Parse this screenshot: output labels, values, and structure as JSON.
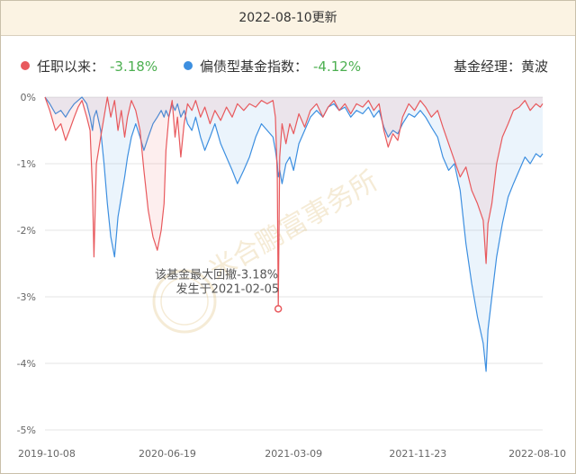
{
  "header": {
    "title": "2022-08-10更新"
  },
  "legend": {
    "items": [
      {
        "label": "任职以来：",
        "value": "-3.18%",
        "color": "#e8595d"
      },
      {
        "label": "偏债型基金指数：",
        "value": "-4.12%",
        "color": "#3d8fe0"
      }
    ],
    "manager": "基金经理：黄波"
  },
  "annotation": {
    "line1": "该基金最大回撤-3.18%",
    "line2": "发生于2021-02-05"
  },
  "watermark": "米合鹏富事务所",
  "chart_data": {
    "type": "area",
    "xlabel": "",
    "ylabel": "",
    "x_ticks": [
      "2019-10-08",
      "2020-06-19",
      "2021-03-09",
      "2021-11-23",
      "2022-08-10"
    ],
    "y_ticks": [
      "0%",
      "-1%",
      "-2%",
      "-3%",
      "-4%",
      "-5%"
    ],
    "ylim": [
      -5,
      0
    ],
    "x_range": [
      "2019-10-08",
      "2022-08-10"
    ],
    "grid": true,
    "max_drawdown_marker": {
      "date": "2021-02-05",
      "value": -3.18
    },
    "series": [
      {
        "name": "任职以来",
        "color": "#e8595d",
        "points": [
          [
            "2019-10-08",
            0
          ],
          [
            "2019-10-18",
            -0.2
          ],
          [
            "2019-10-30",
            -0.5
          ],
          [
            "2019-11-10",
            -0.4
          ],
          [
            "2019-11-20",
            -0.65
          ],
          [
            "2019-11-28",
            -0.5
          ],
          [
            "2019-12-08",
            -0.3
          ],
          [
            "2019-12-16",
            -0.15
          ],
          [
            "2019-12-24",
            -0.05
          ],
          [
            "2020-01-03",
            -0.3
          ],
          [
            "2020-01-10",
            -0.5
          ],
          [
            "2020-01-15",
            -1.4
          ],
          [
            "2020-01-18",
            -2.4
          ],
          [
            "2020-01-23",
            -1.0
          ],
          [
            "2020-02-01",
            -0.6
          ],
          [
            "2020-02-08",
            -0.3
          ],
          [
            "2020-02-15",
            0
          ],
          [
            "2020-02-22",
            -0.3
          ],
          [
            "2020-03-01",
            -0.05
          ],
          [
            "2020-03-08",
            -0.5
          ],
          [
            "2020-03-15",
            -0.2
          ],
          [
            "2020-03-22",
            -0.6
          ],
          [
            "2020-03-28",
            -0.3
          ],
          [
            "2020-04-05",
            -0.05
          ],
          [
            "2020-04-14",
            -0.2
          ],
          [
            "2020-04-23",
            -0.5
          ],
          [
            "2020-05-01",
            -1.1
          ],
          [
            "2020-05-10",
            -1.7
          ],
          [
            "2020-05-20",
            -2.1
          ],
          [
            "2020-05-29",
            -2.3
          ],
          [
            "2020-06-06",
            -2.0
          ],
          [
            "2020-06-12",
            -1.6
          ],
          [
            "2020-06-16",
            -0.8
          ],
          [
            "2020-06-22",
            -0.3
          ],
          [
            "2020-06-29",
            -0.05
          ],
          [
            "2020-07-05",
            -0.6
          ],
          [
            "2020-07-10",
            -0.3
          ],
          [
            "2020-07-17",
            -0.9
          ],
          [
            "2020-07-24",
            -0.4
          ],
          [
            "2020-07-31",
            -0.1
          ],
          [
            "2020-08-09",
            -0.2
          ],
          [
            "2020-08-17",
            -0.05
          ],
          [
            "2020-08-27",
            -0.3
          ],
          [
            "2020-09-05",
            -0.15
          ],
          [
            "2020-09-16",
            -0.4
          ],
          [
            "2020-09-26",
            -0.2
          ],
          [
            "2020-10-08",
            -0.35
          ],
          [
            "2020-10-20",
            -0.15
          ],
          [
            "2020-11-01",
            -0.3
          ],
          [
            "2020-11-12",
            -0.1
          ],
          [
            "2020-11-25",
            -0.2
          ],
          [
            "2020-12-07",
            -0.1
          ],
          [
            "2020-12-20",
            -0.15
          ],
          [
            "2021-01-01",
            -0.05
          ],
          [
            "2021-01-13",
            -0.1
          ],
          [
            "2021-01-25",
            -0.05
          ],
          [
            "2021-01-30",
            -0.3
          ],
          [
            "2021-02-03",
            -1.2
          ],
          [
            "2021-02-05",
            -3.18
          ],
          [
            "2021-02-08",
            -0.9
          ],
          [
            "2021-02-13",
            -0.4
          ],
          [
            "2021-02-21",
            -0.7
          ],
          [
            "2021-03-01",
            -0.4
          ],
          [
            "2021-03-09",
            -0.55
          ],
          [
            "2021-03-20",
            -0.25
          ],
          [
            "2021-04-01",
            -0.45
          ],
          [
            "2021-04-13",
            -0.2
          ],
          [
            "2021-04-26",
            -0.1
          ],
          [
            "2021-05-09",
            -0.3
          ],
          [
            "2021-05-20",
            -0.15
          ],
          [
            "2021-06-01",
            -0.05
          ],
          [
            "2021-06-12",
            -0.2
          ],
          [
            "2021-06-24",
            -0.1
          ],
          [
            "2021-07-06",
            -0.25
          ],
          [
            "2021-07-18",
            -0.1
          ],
          [
            "2021-07-31",
            -0.15
          ],
          [
            "2021-08-12",
            -0.05
          ],
          [
            "2021-08-23",
            -0.2
          ],
          [
            "2021-09-03",
            -0.1
          ],
          [
            "2021-09-13",
            -0.5
          ],
          [
            "2021-09-22",
            -0.75
          ],
          [
            "2021-10-02",
            -0.55
          ],
          [
            "2021-10-12",
            -0.65
          ],
          [
            "2021-10-22",
            -0.3
          ],
          [
            "2021-11-04",
            -0.1
          ],
          [
            "2021-11-16",
            -0.2
          ],
          [
            "2021-11-28",
            -0.05
          ],
          [
            "2021-12-09",
            -0.15
          ],
          [
            "2021-12-21",
            -0.3
          ],
          [
            "2022-01-03",
            -0.2
          ],
          [
            "2022-01-14",
            -0.45
          ],
          [
            "2022-01-26",
            -0.7
          ],
          [
            "2022-02-07",
            -0.95
          ],
          [
            "2022-02-19",
            -1.2
          ],
          [
            "2022-03-03",
            -1.05
          ],
          [
            "2022-03-15",
            -1.4
          ],
          [
            "2022-03-27",
            -1.6
          ],
          [
            "2022-04-08",
            -1.85
          ],
          [
            "2022-04-14",
            -2.5
          ],
          [
            "2022-04-18",
            -1.9
          ],
          [
            "2022-04-26",
            -1.6
          ],
          [
            "2022-05-06",
            -1.0
          ],
          [
            "2022-05-18",
            -0.6
          ],
          [
            "2022-05-30",
            -0.4
          ],
          [
            "2022-06-10",
            -0.2
          ],
          [
            "2022-06-22",
            -0.15
          ],
          [
            "2022-07-04",
            -0.05
          ],
          [
            "2022-07-15",
            -0.2
          ],
          [
            "2022-07-27",
            -0.1
          ],
          [
            "2022-08-05",
            -0.15
          ],
          [
            "2022-08-10",
            -0.1
          ]
        ]
      },
      {
        "name": "偏债型基金指数",
        "color": "#3d8fe0",
        "points": [
          [
            "2019-10-08",
            0
          ],
          [
            "2019-10-18",
            -0.1
          ],
          [
            "2019-10-30",
            -0.25
          ],
          [
            "2019-11-10",
            -0.2
          ],
          [
            "2019-11-20",
            -0.3
          ],
          [
            "2019-11-28",
            -0.2
          ],
          [
            "2019-12-08",
            -0.1
          ],
          [
            "2019-12-16",
            -0.05
          ],
          [
            "2019-12-24",
            0
          ],
          [
            "2020-01-03",
            -0.1
          ],
          [
            "2020-01-10",
            -0.3
          ],
          [
            "2020-01-15",
            -0.5
          ],
          [
            "2020-01-18",
            -0.3
          ],
          [
            "2020-01-23",
            -0.2
          ],
          [
            "2020-02-01",
            -0.5
          ],
          [
            "2020-02-08",
            -1.0
          ],
          [
            "2020-02-15",
            -1.6
          ],
          [
            "2020-02-22",
            -2.1
          ],
          [
            "2020-03-01",
            -2.4
          ],
          [
            "2020-03-08",
            -1.8
          ],
          [
            "2020-03-15",
            -1.5
          ],
          [
            "2020-03-22",
            -1.2
          ],
          [
            "2020-03-28",
            -0.9
          ],
          [
            "2020-04-05",
            -0.6
          ],
          [
            "2020-04-14",
            -0.4
          ],
          [
            "2020-04-23",
            -0.6
          ],
          [
            "2020-05-01",
            -0.8
          ],
          [
            "2020-05-10",
            -0.6
          ],
          [
            "2020-05-20",
            -0.4
          ],
          [
            "2020-05-29",
            -0.3
          ],
          [
            "2020-06-06",
            -0.2
          ],
          [
            "2020-06-12",
            -0.3
          ],
          [
            "2020-06-16",
            -0.2
          ],
          [
            "2020-06-22",
            -0.3
          ],
          [
            "2020-06-29",
            -0.1
          ],
          [
            "2020-07-05",
            -0.2
          ],
          [
            "2020-07-10",
            -0.1
          ],
          [
            "2020-07-17",
            -0.3
          ],
          [
            "2020-07-24",
            -0.2
          ],
          [
            "2020-07-31",
            -0.4
          ],
          [
            "2020-08-09",
            -0.5
          ],
          [
            "2020-08-17",
            -0.3
          ],
          [
            "2020-08-27",
            -0.6
          ],
          [
            "2020-09-05",
            -0.8
          ],
          [
            "2020-09-16",
            -0.6
          ],
          [
            "2020-09-26",
            -0.4
          ],
          [
            "2020-10-08",
            -0.7
          ],
          [
            "2020-10-20",
            -0.9
          ],
          [
            "2020-11-01",
            -1.1
          ],
          [
            "2020-11-12",
            -1.3
          ],
          [
            "2020-11-25",
            -1.1
          ],
          [
            "2020-12-07",
            -0.9
          ],
          [
            "2020-12-20",
            -0.6
          ],
          [
            "2021-01-01",
            -0.4
          ],
          [
            "2021-01-13",
            -0.5
          ],
          [
            "2021-01-25",
            -0.6
          ],
          [
            "2021-01-30",
            -0.8
          ],
          [
            "2021-02-03",
            -1.0
          ],
          [
            "2021-02-05",
            -1.2
          ],
          [
            "2021-02-08",
            -1.1
          ],
          [
            "2021-02-13",
            -1.3
          ],
          [
            "2021-02-21",
            -1.0
          ],
          [
            "2021-03-01",
            -0.9
          ],
          [
            "2021-03-09",
            -1.1
          ],
          [
            "2021-03-20",
            -0.7
          ],
          [
            "2021-04-01",
            -0.5
          ],
          [
            "2021-04-13",
            -0.3
          ],
          [
            "2021-04-26",
            -0.2
          ],
          [
            "2021-05-09",
            -0.3
          ],
          [
            "2021-05-20",
            -0.15
          ],
          [
            "2021-06-01",
            -0.1
          ],
          [
            "2021-06-12",
            -0.2
          ],
          [
            "2021-06-24",
            -0.15
          ],
          [
            "2021-07-06",
            -0.3
          ],
          [
            "2021-07-18",
            -0.2
          ],
          [
            "2021-07-31",
            -0.25
          ],
          [
            "2021-08-12",
            -0.15
          ],
          [
            "2021-08-23",
            -0.3
          ],
          [
            "2021-09-03",
            -0.2
          ],
          [
            "2021-09-13",
            -0.45
          ],
          [
            "2021-09-22",
            -0.6
          ],
          [
            "2021-10-02",
            -0.5
          ],
          [
            "2021-10-12",
            -0.55
          ],
          [
            "2021-10-22",
            -0.4
          ],
          [
            "2021-11-04",
            -0.25
          ],
          [
            "2021-11-16",
            -0.3
          ],
          [
            "2021-11-28",
            -0.2
          ],
          [
            "2021-12-09",
            -0.3
          ],
          [
            "2021-12-21",
            -0.45
          ],
          [
            "2022-01-03",
            -0.6
          ],
          [
            "2022-01-14",
            -0.9
          ],
          [
            "2022-01-26",
            -1.1
          ],
          [
            "2022-02-07",
            -1.0
          ],
          [
            "2022-02-19",
            -1.4
          ],
          [
            "2022-03-03",
            -2.2
          ],
          [
            "2022-03-15",
            -2.8
          ],
          [
            "2022-03-27",
            -3.3
          ],
          [
            "2022-04-08",
            -3.7
          ],
          [
            "2022-04-14",
            -4.12
          ],
          [
            "2022-04-18",
            -3.5
          ],
          [
            "2022-04-26",
            -3.0
          ],
          [
            "2022-05-06",
            -2.4
          ],
          [
            "2022-05-18",
            -1.9
          ],
          [
            "2022-05-30",
            -1.5
          ],
          [
            "2022-06-10",
            -1.3
          ],
          [
            "2022-06-22",
            -1.1
          ],
          [
            "2022-07-04",
            -0.9
          ],
          [
            "2022-07-15",
            -1.0
          ],
          [
            "2022-07-27",
            -0.85
          ],
          [
            "2022-08-05",
            -0.9
          ],
          [
            "2022-08-10",
            -0.85
          ]
        ]
      }
    ]
  }
}
